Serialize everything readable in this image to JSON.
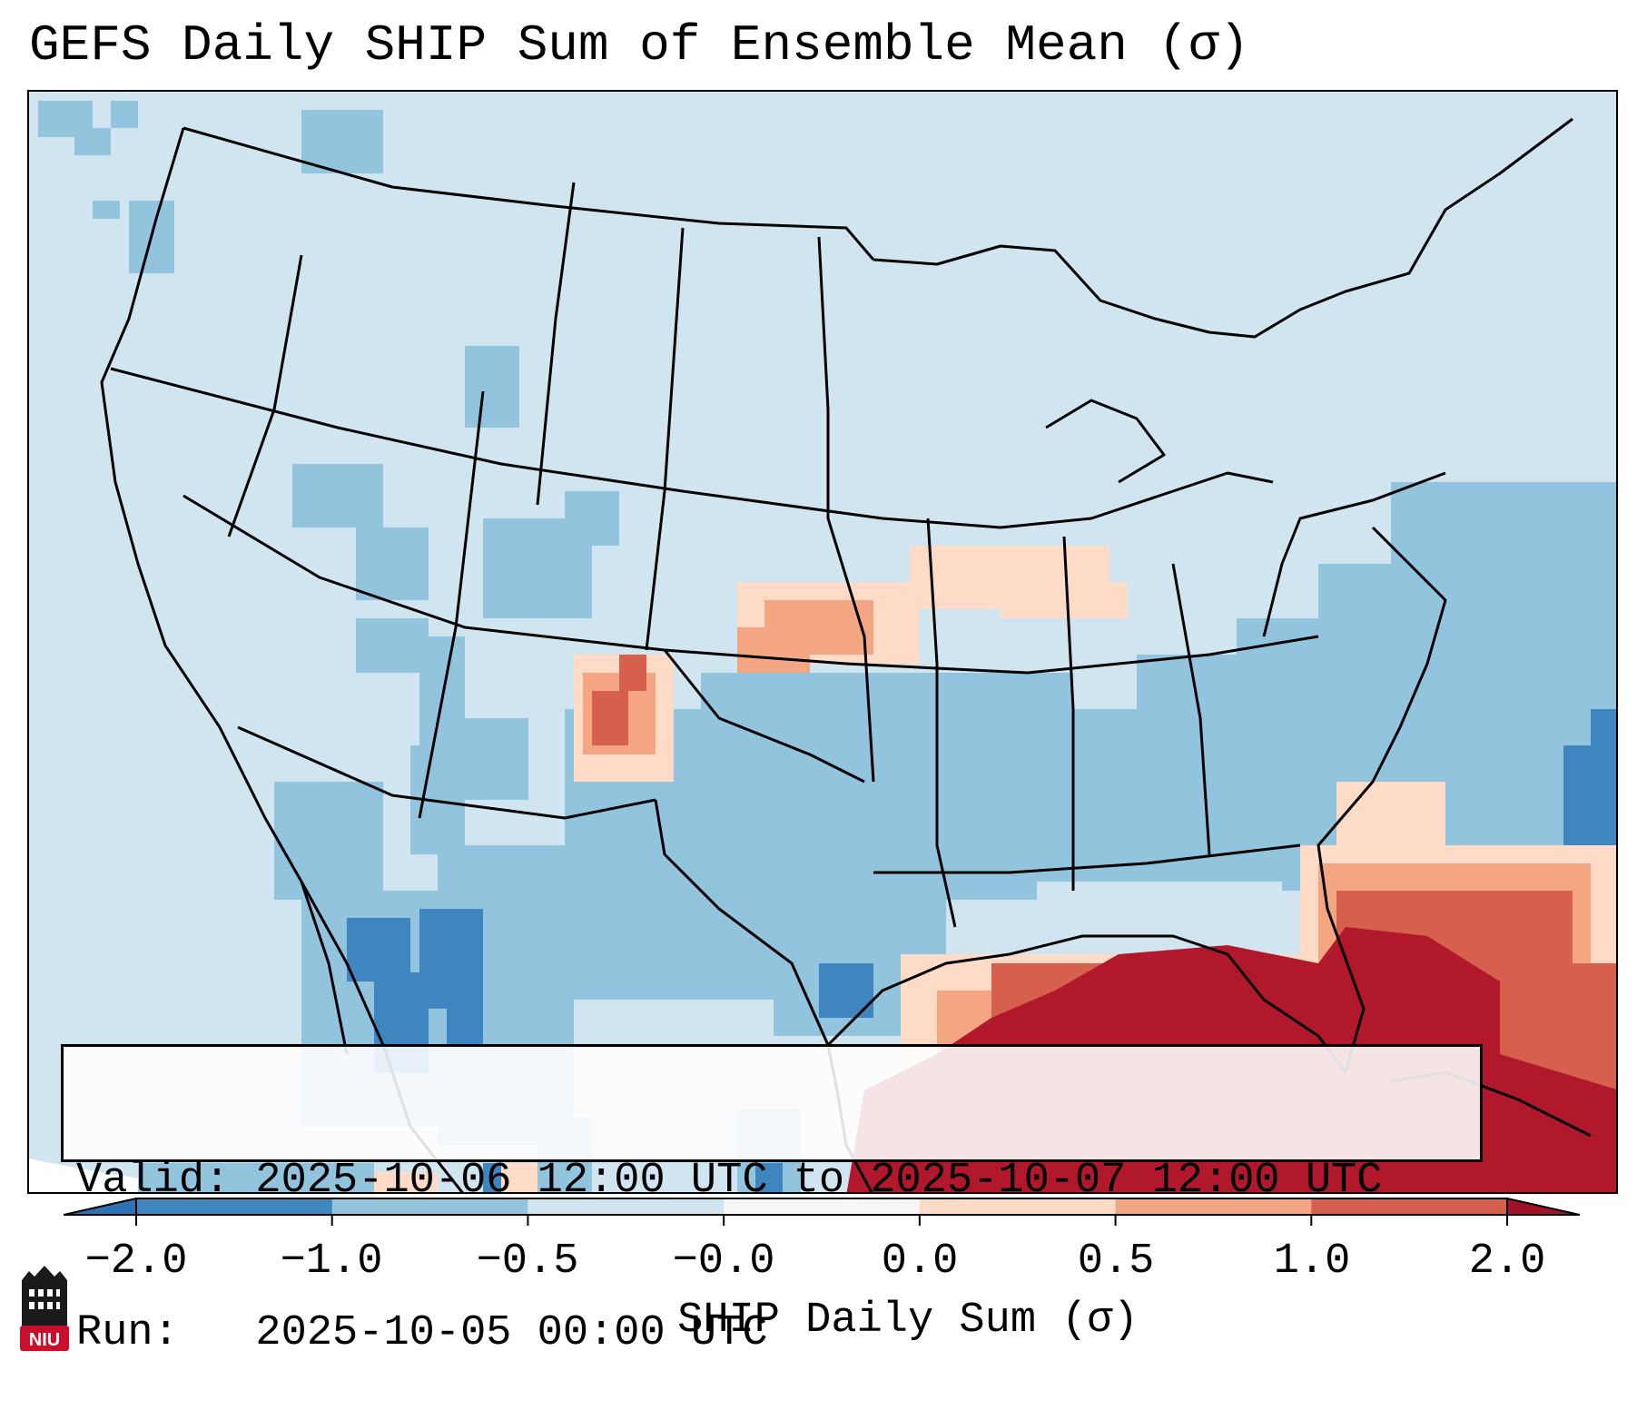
{
  "title": "GEFS Daily SHIP Sum of Ensemble Mean (σ)",
  "info": {
    "valid_line": "Valid: 2025-10-06 12:00 UTC to 2025-10-07 12:00 UTC",
    "run_line": "Run:   2025-10-05 00:00 UTC"
  },
  "colorbar": {
    "label": "SHIP Daily Sum (σ)",
    "ticks": [
      "−2.0",
      "−1.0",
      "−0.5",
      "−0.0",
      "0.0",
      "0.5",
      "1.0",
      "2.0"
    ],
    "colors": [
      "#3f86c0",
      "#92c4de",
      "#d1e5f0",
      "#f7f7f7",
      "#fddbc7",
      "#f4a582",
      "#d6604d",
      "#b2182b"
    ],
    "min_extend_color": "#2f72b4",
    "max_extend_color": "#a11127"
  },
  "map": {
    "background_low": "#d1e5f0",
    "background_mid": "#92c4de",
    "background_strong": "#3f86c0",
    "positive_light": "#fddbc7",
    "positive_mid": "#f4a582",
    "positive_strong": "#d6604d",
    "positive_max": "#b2182b"
  },
  "logo": {
    "text": "NIU",
    "color": "#c8102e"
  }
}
